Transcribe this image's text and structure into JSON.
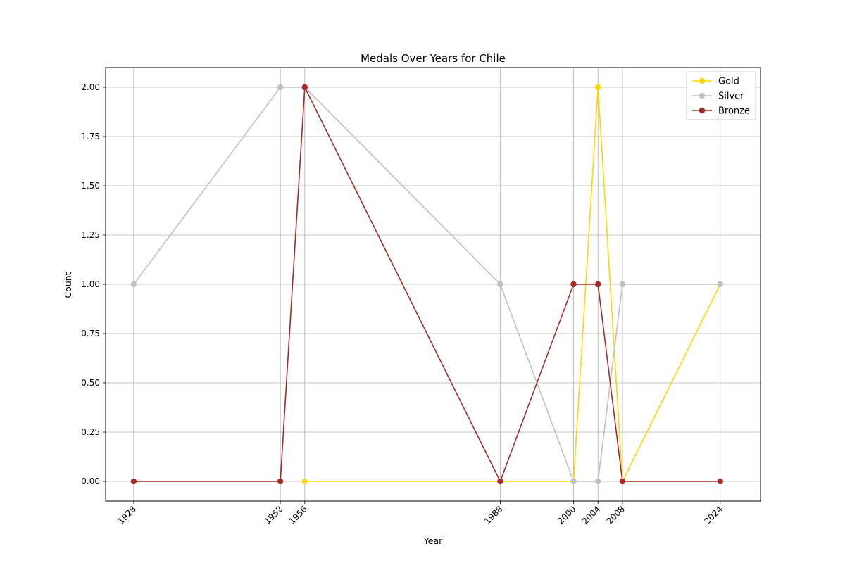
{
  "chart_data": {
    "type": "line",
    "title": "Medals Over Years for Chile",
    "xlabel": "Year",
    "ylabel": "Count",
    "x": [
      1928,
      1952,
      1956,
      1988,
      2000,
      2004,
      2008,
      2024
    ],
    "xticks": [
      "1928",
      "1952",
      "1956",
      "1988",
      "2000",
      "2004",
      "2008",
      "2024"
    ],
    "yticks": [
      "0.00",
      "0.25",
      "0.50",
      "0.75",
      "1.00",
      "1.25",
      "1.50",
      "1.75",
      "2.00"
    ],
    "ylim": [
      -0.1,
      2.1
    ],
    "xlim": [
      1923.4,
      2030.6
    ],
    "grid": true,
    "legend_position": "top-right",
    "series": [
      {
        "name": "Gold",
        "color": "#FFD700",
        "x": [
          1956,
          1988,
          2000,
          2004,
          2008,
          2024
        ],
        "values": [
          0,
          0,
          0,
          2,
          0,
          1
        ]
      },
      {
        "name": "Silver",
        "color": "#C0C0C0",
        "x": [
          1928,
          1952,
          1956,
          1988,
          2000,
          2004,
          2008,
          2024
        ],
        "values": [
          1,
          2,
          2,
          1,
          0,
          0,
          1,
          1
        ]
      },
      {
        "name": "Bronze",
        "color": "#A52A2A",
        "x": [
          1928,
          1952,
          1956,
          1988,
          2000,
          2004,
          2008,
          2024
        ],
        "values": [
          0,
          0,
          2,
          0,
          1,
          1,
          0,
          0
        ]
      }
    ]
  }
}
